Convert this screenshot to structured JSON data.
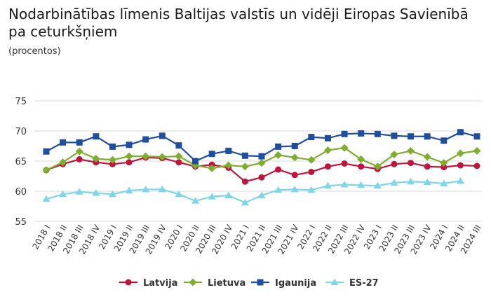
{
  "chart_data": {
    "type": "line",
    "title": "Nodarbinātības līmenis Baltijas valstīs un vidēji Eiropas Savienībā pa ceturkšņiem",
    "subtitle": "(procentos)",
    "ylim": [
      55,
      75
    ],
    "yticks": [
      55,
      60,
      65,
      70,
      75
    ],
    "grid": true,
    "legend_position": "bottom",
    "categories": [
      "2018 I",
      "2018 II",
      "2018 III",
      "2018 IV",
      "2019 I",
      "2019 II",
      "2019 III",
      "2019 IV",
      "2020 I",
      "2020 II",
      "2020 III",
      "2020 IV",
      "2021 I",
      "2021 II",
      "2021 III",
      "2021 IV",
      "2022 I",
      "2022 II",
      "2022 III",
      "2022 IV",
      "2023 I",
      "2023 II",
      "2023 III",
      "2023 IV",
      "2024 I",
      "2024 II",
      "2024 III"
    ],
    "series": [
      {
        "name": "Latvija",
        "color": "#c0143c",
        "marker": "circle",
        "values": [
          63.5,
          64.5,
          65.3,
          64.8,
          64.5,
          64.8,
          65.6,
          65.5,
          64.8,
          64.1,
          64.4,
          63.9,
          61.6,
          62.3,
          63.6,
          62.7,
          63.2,
          64.1,
          64.6,
          64.1,
          63.7,
          64.5,
          64.7,
          64.1,
          64.0,
          64.3,
          64.2
        ]
      },
      {
        "name": "Lietuva",
        "color": "#7fae2f",
        "marker": "diamond",
        "values": [
          63.5,
          64.8,
          66.6,
          65.4,
          65.2,
          65.8,
          65.8,
          65.7,
          65.8,
          64.3,
          63.8,
          64.3,
          64.1,
          64.7,
          66.0,
          65.6,
          65.2,
          66.8,
          67.2,
          65.3,
          64.1,
          66.1,
          66.7,
          65.7,
          64.7,
          66.3,
          66.7
        ]
      },
      {
        "name": "Igaunija",
        "color": "#1f4e9e",
        "marker": "square",
        "values": [
          66.6,
          68.1,
          68.1,
          69.1,
          67.4,
          67.7,
          68.6,
          69.2,
          67.6,
          65.0,
          66.2,
          66.7,
          65.9,
          65.8,
          67.4,
          67.5,
          69.0,
          68.8,
          69.5,
          69.6,
          69.5,
          69.2,
          69.1,
          69.1,
          68.4,
          69.8,
          69.1
        ]
      },
      {
        "name": "ES-27",
        "color": "#7dd6ea",
        "marker": "triangle",
        "values": [
          58.7,
          59.5,
          59.9,
          59.7,
          59.5,
          60.1,
          60.3,
          60.3,
          59.5,
          58.4,
          59.1,
          59.3,
          58.1,
          59.3,
          60.2,
          60.3,
          60.2,
          60.9,
          61.1,
          61.0,
          60.9,
          61.4,
          61.6,
          61.5,
          61.3,
          61.7,
          null
        ]
      }
    ]
  }
}
